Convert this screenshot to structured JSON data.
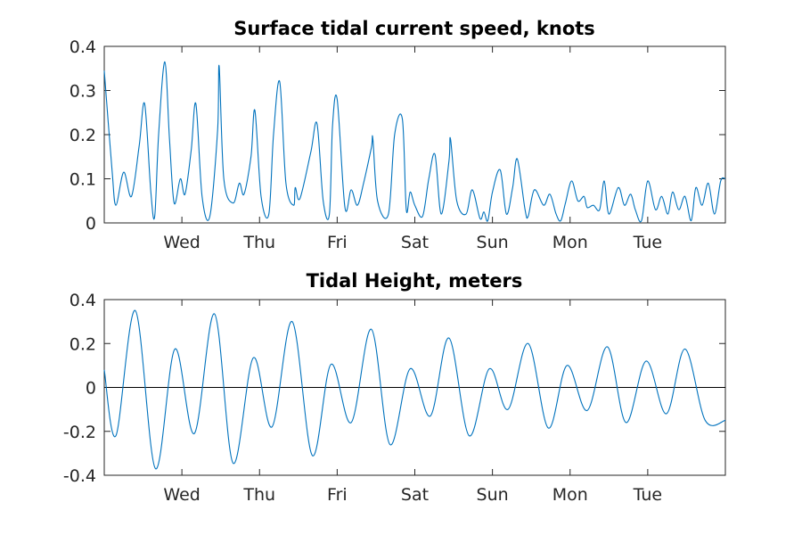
{
  "chart_data": [
    {
      "type": "line",
      "title": "Surface tidal current speed, knots",
      "xlabel": "",
      "ylabel": "",
      "ylim": [
        0,
        0.4
      ],
      "yticks": [
        "0",
        "0.1",
        "0.2",
        "0.3",
        "0.4"
      ],
      "yticks_values": [
        0,
        0.1,
        0.2,
        0.3,
        0.4
      ],
      "xlim": [
        -0.6,
        7.4
      ],
      "xticks": [
        "Wed",
        "Thu",
        "Fri",
        "Sat",
        "Sun",
        "Mon",
        "Tue"
      ],
      "xticks_values": [
        0.4,
        1.4,
        2.4,
        3.4,
        4.4,
        5.4,
        6.4
      ],
      "grid": false,
      "series": [
        {
          "name": "",
          "color": "#0072BD",
          "x": [
            -0.6,
            -0.5,
            -0.45,
            -0.35,
            -0.25,
            -0.15,
            -0.08,
            0,
            0.05,
            0.1,
            0.18,
            0.24,
            0.3,
            0.38,
            0.44,
            0.52,
            0.58,
            0.66,
            0.76,
            0.86,
            0.88,
            0.94,
            1.06,
            1.14,
            1.2,
            1.29,
            1.34,
            1.42,
            1.52,
            1.58,
            1.66,
            1.74,
            1.84,
            1.86,
            1.92,
            2.06,
            2.14,
            2.22,
            2.3,
            2.34,
            2.4,
            2.5,
            2.58,
            2.66,
            2.74,
            2.84,
            2.86,
            2.92,
            3.06,
            3.14,
            3.24,
            3.29,
            3.34,
            3.4,
            3.5,
            3.58,
            3.66,
            3.74,
            3.84,
            3.86,
            3.94,
            4.06,
            4.14,
            4.24,
            4.29,
            4.34,
            4.4,
            4.5,
            4.58,
            4.66,
            4.72,
            4.82,
            4.86,
            4.94,
            5.06,
            5.14,
            5.22,
            5.28,
            5.34,
            5.42,
            5.5,
            5.58,
            5.62,
            5.7,
            5.78,
            5.84,
            5.9,
            6.02,
            6.1,
            6.18,
            6.24,
            6.32,
            6.4,
            6.5,
            6.58,
            6.66,
            6.72,
            6.8,
            6.88,
            6.96,
            7.02,
            7.1,
            7.18,
            7.26,
            7.34,
            7.4
          ],
          "y": [
            0.345,
            0.12,
            0.04,
            0.115,
            0.06,
            0.175,
            0.27,
            0.07,
            0.015,
            0.2,
            0.365,
            0.19,
            0.045,
            0.1,
            0.065,
            0.165,
            0.27,
            0.06,
            0.015,
            0.21,
            0.355,
            0.1,
            0.045,
            0.09,
            0.065,
            0.15,
            0.255,
            0.06,
            0.02,
            0.2,
            0.32,
            0.09,
            0.04,
            0.08,
            0.055,
            0.16,
            0.225,
            0.05,
            0.02,
            0.22,
            0.28,
            0.035,
            0.075,
            0.04,
            0.09,
            0.17,
            0.19,
            0.05,
            0.02,
            0.2,
            0.235,
            0.03,
            0.07,
            0.04,
            0.015,
            0.1,
            0.155,
            0.02,
            0.14,
            0.19,
            0.05,
            0.02,
            0.075,
            0.01,
            0.025,
            0.005,
            0.07,
            0.12,
            0.02,
            0.08,
            0.145,
            0.03,
            0.015,
            0.075,
            0.04,
            0.065,
            0.02,
            0.005,
            0.045,
            0.095,
            0.05,
            0.06,
            0.035,
            0.04,
            0.03,
            0.095,
            0.02,
            0.08,
            0.04,
            0.065,
            0.03,
            0.005,
            0.095,
            0.03,
            0.06,
            0.02,
            0.07,
            0.03,
            0.06,
            0.005,
            0.08,
            0.04,
            0.09,
            0.02,
            0.095,
            0.1
          ]
        }
      ]
    },
    {
      "type": "line",
      "title": "Tidal Height, meters",
      "xlabel": "",
      "ylabel": "",
      "ylim": [
        -0.4,
        0.4
      ],
      "yticks": [
        "-0.4",
        "-0.2",
        "0",
        "0.2",
        "0.4"
      ],
      "yticks_values": [
        -0.4,
        -0.2,
        0,
        0.2,
        0.4
      ],
      "xlim": [
        -0.6,
        7.4
      ],
      "xticks": [
        "Wed",
        "Thu",
        "Fri",
        "Sat",
        "Sun",
        "Mon",
        "Tue"
      ],
      "xticks_values": [
        0.4,
        1.4,
        2.4,
        3.4,
        4.4,
        5.4,
        6.4
      ],
      "grid": false,
      "zero_line": true,
      "series": [
        {
          "name": "",
          "color": "#0072BD",
          "x": [
            -0.6,
            -0.45,
            -0.2,
            0.06,
            0.31,
            0.56,
            0.82,
            1.06,
            1.32,
            1.56,
            1.82,
            2.08,
            2.32,
            2.58,
            2.84,
            3.08,
            3.34,
            3.6,
            3.84,
            4.1,
            4.36,
            4.6,
            4.86,
            5.12,
            5.36,
            5.62,
            5.88,
            6.12,
            6.38,
            6.64,
            6.88,
            7.14,
            7.4
          ],
          "y": [
            0.08,
            -0.22,
            0.35,
            -0.37,
            0.175,
            -0.21,
            0.335,
            -0.345,
            0.135,
            -0.18,
            0.3,
            -0.31,
            0.105,
            -0.16,
            0.265,
            -0.26,
            0.085,
            -0.13,
            0.225,
            -0.22,
            0.085,
            -0.1,
            0.2,
            -0.185,
            0.1,
            -0.105,
            0.185,
            -0.16,
            0.12,
            -0.12,
            0.175,
            -0.15,
            -0.15
          ]
        }
      ]
    }
  ]
}
